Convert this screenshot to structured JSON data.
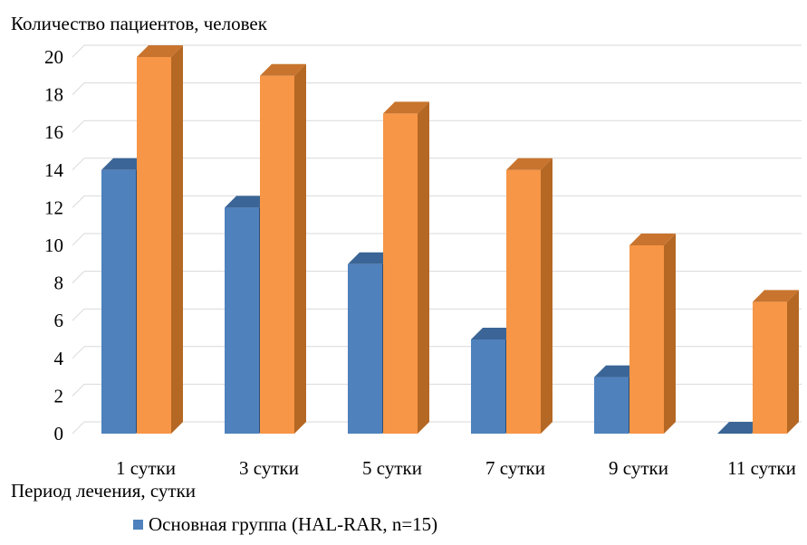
{
  "chart_data": {
    "type": "bar",
    "style": "3d-clustered-column",
    "ylabel": "Количество пациентов, человек",
    "xlabel": "Период лечения, сутки",
    "categories": [
      "1 сутки",
      "3 сутки",
      "5 сутки",
      "7 сутки",
      "9 сутки",
      "11 сутки"
    ],
    "series": [
      {
        "name": "Основная группа (HAL-RAR, n=15)",
        "values": [
          14,
          12,
          9,
          5,
          3,
          0
        ],
        "color": "#4f81bd",
        "top_color": "#3a6596",
        "side_color": "#2c4f78"
      },
      {
        "values": [
          20,
          19,
          17,
          14,
          10,
          7
        ],
        "color": "#f79646",
        "top_color": "#c8742e",
        "side_color": "#b56824"
      }
    ],
    "ylim": [
      0,
      20
    ],
    "yticks": [
      0,
      2,
      4,
      6,
      8,
      10,
      12,
      14,
      16,
      18,
      20
    ],
    "grid": true,
    "legend_position": "bottom"
  }
}
